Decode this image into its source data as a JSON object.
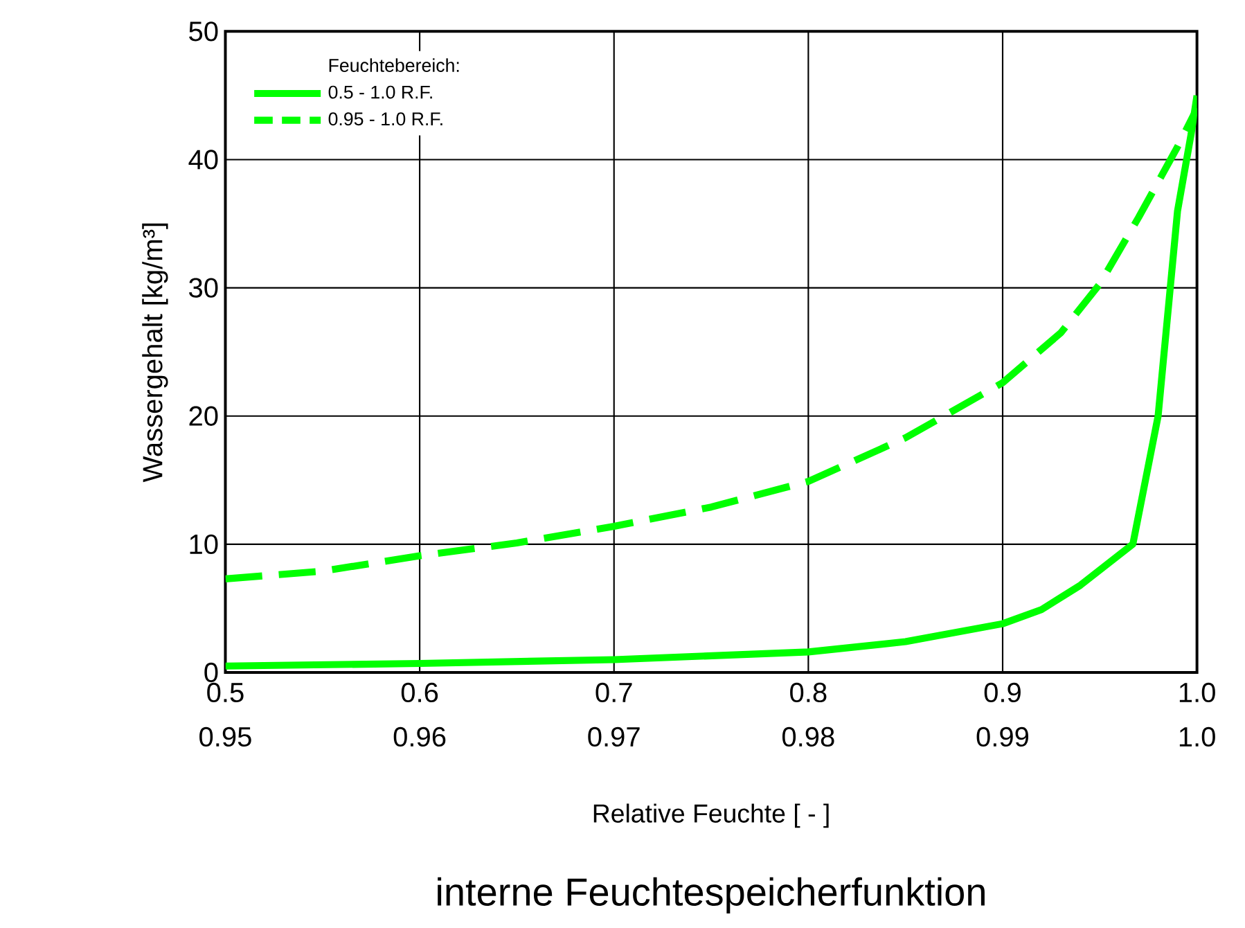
{
  "chart_data": {
    "type": "line",
    "xlabel": "Relative Feuchte [ - ]",
    "ylabel": "Wassergehalt [kg/m³]",
    "legend_title": "Feuchtebereich:",
    "legend": "top left",
    "grid": true,
    "xlim": [
      0.5,
      1.0
    ],
    "xticks": [
      0.5,
      0.6,
      0.7,
      0.8,
      0.9,
      {
        "value": 1.0,
        "label": "1.0"
      }
    ],
    "x2lim": [
      0.95,
      1.0
    ],
    "x2ticks": [
      0.95,
      0.96,
      0.97,
      0.98,
      0.99,
      {
        "value": 1.0,
        "label": "1.0"
      }
    ],
    "ylim": [
      0,
      50
    ],
    "yticks": [
      0,
      10,
      20,
      30,
      40,
      50
    ],
    "series": [
      {
        "name": "0.5  -  1.0 R.F.",
        "color": "#00ff00",
        "line_style": "solid",
        "x": [
          0.5,
          0.6,
          0.7,
          0.8,
          0.85,
          0.9,
          0.92,
          0.94,
          0.967,
          0.98,
          0.99,
          0.997,
          1.0
        ],
        "values": [
          0.5,
          0.7,
          1.0,
          1.6,
          2.4,
          3.8,
          4.9,
          6.8,
          10,
          20,
          36,
          42,
          45
        ]
      },
      {
        "name": "0.95 - 1.0 R.F.",
        "color": "#00ff00",
        "line_style": "dashed",
        "axis": "x2",
        "x": [
          0.95,
          0.955,
          0.96,
          0.965,
          0.97,
          0.975,
          0.98,
          0.985,
          0.99,
          0.993,
          0.995,
          0.997,
          0.999,
          1.0
        ],
        "values": [
          7.3,
          7.9,
          9.1,
          10.1,
          11.4,
          12.9,
          14.9,
          18.3,
          22.6,
          26.5,
          30.3,
          35.5,
          41,
          44
        ]
      }
    ],
    "annotations": [
      "interne Feuchtespeicherfunktion"
    ]
  }
}
